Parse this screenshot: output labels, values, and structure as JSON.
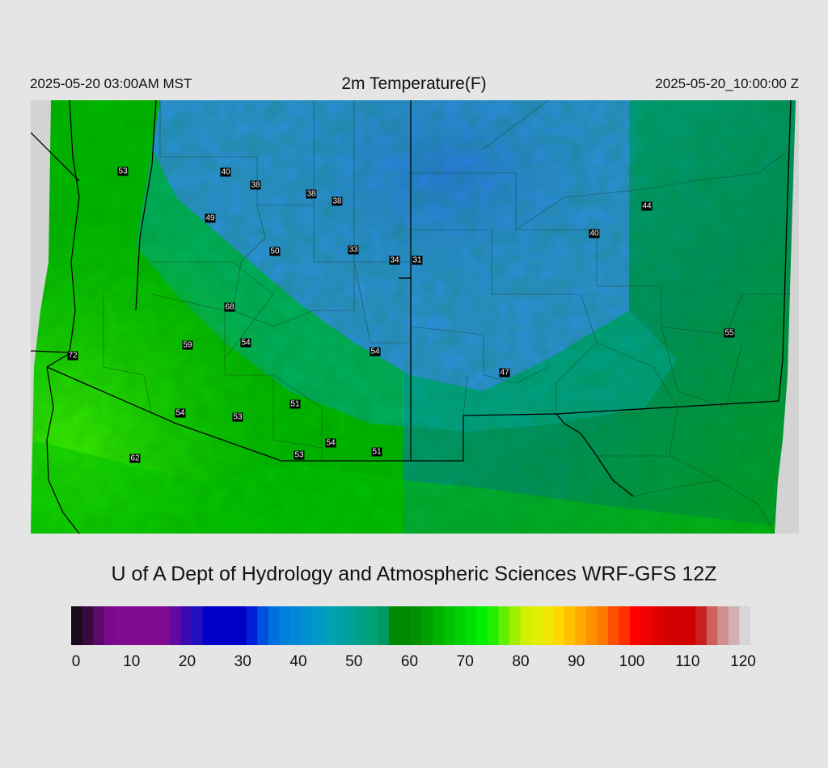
{
  "header": {
    "left_time": "2025-05-20 03:00AM MST",
    "title": "2m Temperature(F)",
    "right_time": "2025-05-20_10:00:00 Z"
  },
  "map": {
    "stations": [
      {
        "value": "53"
      },
      {
        "value": "40"
      },
      {
        "value": "38"
      },
      {
        "value": "38"
      },
      {
        "value": "38"
      },
      {
        "value": "49"
      },
      {
        "value": "50"
      },
      {
        "value": "33"
      },
      {
        "value": "34"
      },
      {
        "value": "31"
      },
      {
        "value": "44"
      },
      {
        "value": "40"
      },
      {
        "value": "68"
      },
      {
        "value": "59"
      },
      {
        "value": "54"
      },
      {
        "value": "54"
      },
      {
        "value": "72"
      },
      {
        "value": "55"
      },
      {
        "value": "47"
      },
      {
        "value": "51"
      },
      {
        "value": "54"
      },
      {
        "value": "53"
      },
      {
        "value": "54"
      },
      {
        "value": "51"
      },
      {
        "value": "53"
      },
      {
        "value": "62"
      }
    ]
  },
  "footer": {
    "text": "U of A Dept of Hydrology and Atmospheric Sciences WRF-GFS 12Z"
  },
  "colorbar": {
    "min": 0,
    "max": 120,
    "tick_labels": [
      "0",
      "10",
      "20",
      "30",
      "40",
      "50",
      "60",
      "70",
      "80",
      "90",
      "100",
      "110",
      "120"
    ],
    "colors": [
      "#1a0a1e",
      "#3a0a3e",
      "#5a0a6a",
      "#7a0a8a",
      "#800a90",
      "#800a90",
      "#800a90",
      "#800a90",
      "#7f0a8f",
      "#600aa0",
      "#3a0ab0",
      "#2010c0",
      "#0000c8",
      "#0000c8",
      "#0000c8",
      "#0000c8",
      "#0020d8",
      "#0050e0",
      "#0070e0",
      "#0080d8",
      "#0088d8",
      "#0090d0",
      "#0098c8",
      "#00a0b8",
      "#00a0a8",
      "#00a098",
      "#00a088",
      "#00a078",
      "#009860",
      "#008800",
      "#008800",
      "#009000",
      "#00a000",
      "#00b000",
      "#00c000",
      "#00d000",
      "#00e000",
      "#00f000",
      "#20f000",
      "#60f000",
      "#a0f000",
      "#d0f000",
      "#e0f000",
      "#f0e800",
      "#ffd800",
      "#ffc000",
      "#ffa800",
      "#ff9000",
      "#ff7800",
      "#ff5000",
      "#ff3000",
      "#ff0000",
      "#f00000",
      "#e00000",
      "#d40000",
      "#d00000",
      "#d00000",
      "#c82020",
      "#d06060",
      "#d09090",
      "#d0b0b0",
      "#d6d6d6"
    ]
  }
}
